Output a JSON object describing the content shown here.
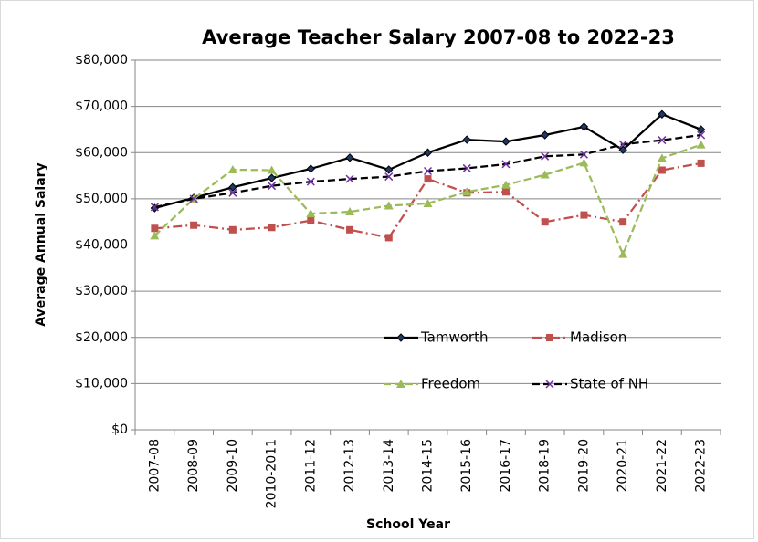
{
  "chart_data": {
    "type": "line",
    "title": "Average Teacher Salary 2007-08 to 2022-23",
    "x_label": "School Year",
    "y_label": "Average Annual Salary",
    "categories": [
      "2007-08",
      "2008-09",
      "2009-10",
      "2010-2011",
      "2011-12",
      "2012-13",
      "2013-14",
      "2014-15",
      "2015-16",
      "2016-17",
      "2018-19",
      "2019-20",
      "2020-21",
      "2021-22",
      "2022-23"
    ],
    "ylim": [
      0,
      80000
    ],
    "yticks": [
      {
        "value": 0,
        "label": "$0"
      },
      {
        "value": 10000,
        "label": "$10,000"
      },
      {
        "value": 20000,
        "label": "$20,000"
      },
      {
        "value": 30000,
        "label": "$30,000"
      },
      {
        "value": 40000,
        "label": "$40,000"
      },
      {
        "value": 50000,
        "label": "$50,000"
      },
      {
        "value": 60000,
        "label": "$60,000"
      },
      {
        "value": 70000,
        "label": "$70,000"
      },
      {
        "value": 80000,
        "label": "$80,000"
      }
    ],
    "grid": true,
    "series": [
      {
        "name": "Tamworth",
        "color": "#000000",
        "marker": "diamond",
        "dash": "solid",
        "values": [
          48000,
          50200,
          52500,
          54500,
          56500,
          58900,
          56300,
          60000,
          62800,
          62400,
          63800,
          65600,
          60600,
          68300,
          65000
        ]
      },
      {
        "name": "Madison",
        "color": "#c0504d",
        "marker": "square",
        "dash": "dashdot",
        "values": [
          43600,
          44300,
          43300,
          43800,
          45300,
          43300,
          41600,
          54300,
          51300,
          51500,
          45000,
          46500,
          45000,
          56200,
          57700
        ]
      },
      {
        "name": "Freedom",
        "color": "#9bbb59",
        "marker": "triangle",
        "dash": "dashed",
        "values": [
          42000,
          50000,
          56300,
          56200,
          46800,
          47200,
          48500,
          49000,
          51500,
          53000,
          55200,
          57800,
          38000,
          58800,
          61700
        ]
      },
      {
        "name": "State of NH",
        "color": "#000000",
        "marker": "x",
        "dash": "dashed",
        "values": [
          48200,
          50000,
          51300,
          52800,
          53700,
          54300,
          54800,
          56000,
          56600,
          57500,
          59200,
          59600,
          61800,
          62700,
          63800
        ]
      }
    ]
  }
}
